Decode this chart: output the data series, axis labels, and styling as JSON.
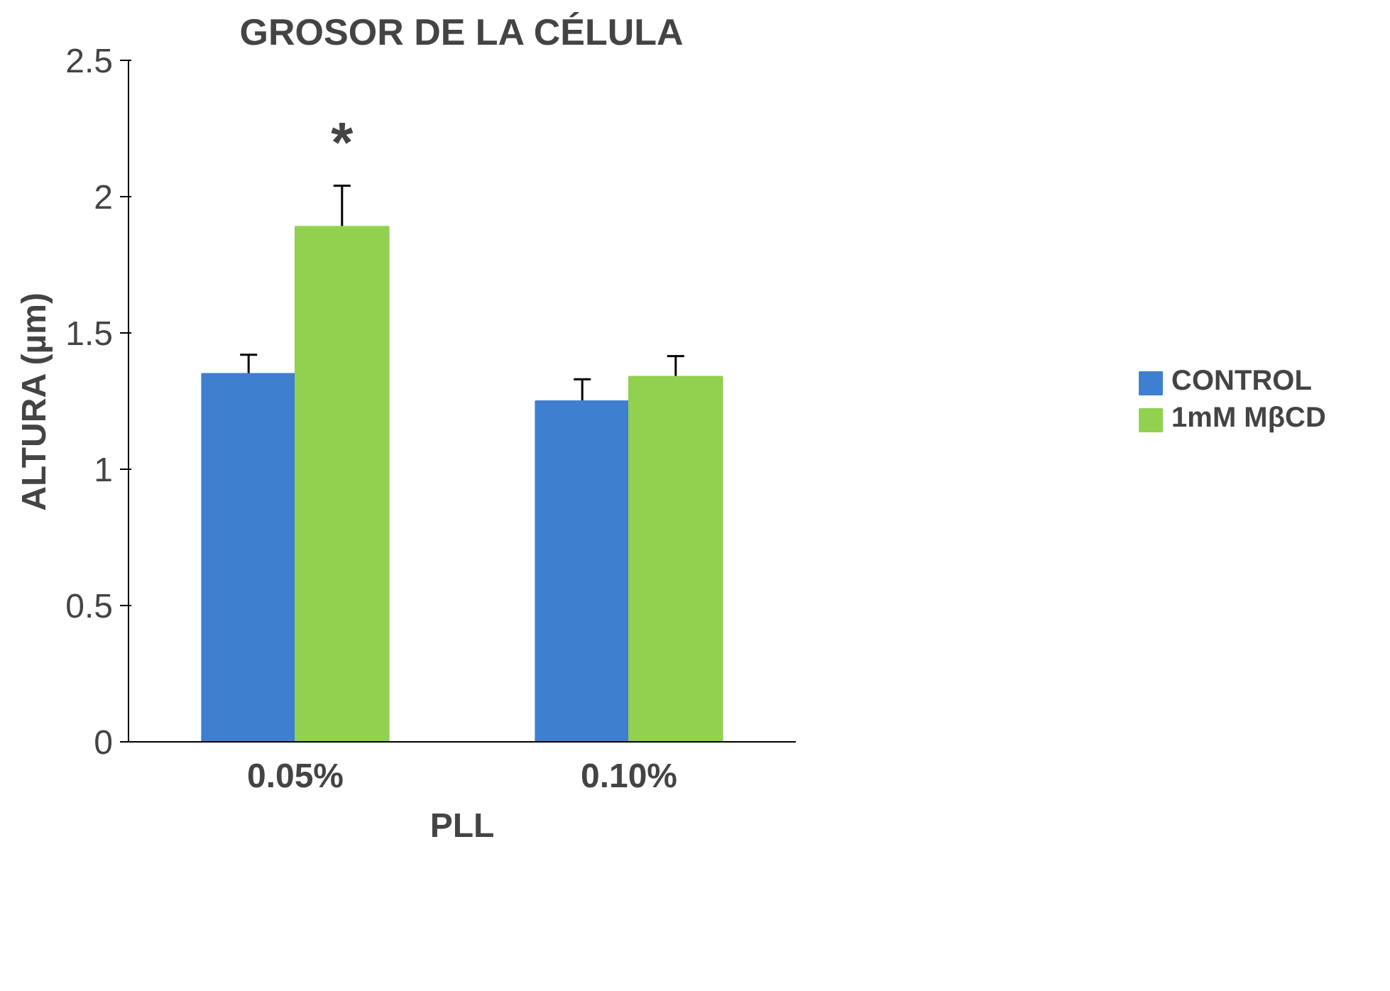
{
  "chart_data": {
    "type": "bar",
    "title": "GROSOR DE LA CÉLULA",
    "xlabel": "PLL",
    "ylabel": "ALTURA (µm)",
    "categories": [
      "0.05%",
      "0.10%"
    ],
    "series": [
      {
        "name": "CONTROL",
        "color": "#3f7fcf",
        "values": [
          1.35,
          1.25
        ],
        "errors": [
          0.07,
          0.08
        ]
      },
      {
        "name": "1mM MβCD",
        "color": "#92d050",
        "values": [
          1.89,
          1.34
        ],
        "errors": [
          0.15,
          0.075
        ]
      }
    ],
    "ylim": [
      0,
      2.5
    ],
    "yticks": [
      0,
      0.5,
      1,
      1.5,
      2,
      2.5
    ],
    "grid": false,
    "legend": "right",
    "annotations": [
      "*"
    ]
  }
}
